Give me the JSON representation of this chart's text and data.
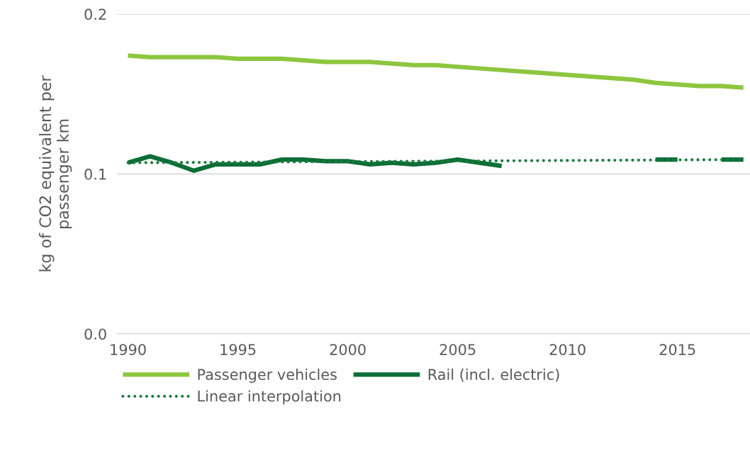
{
  "chart_data": {
    "type": "line",
    "ylabel": "kg of CO2 equivalent per\npassenger km",
    "x": [
      1990,
      1991,
      1992,
      1993,
      1994,
      1995,
      1996,
      1997,
      1998,
      1999,
      2000,
      2001,
      2002,
      2003,
      2004,
      2005,
      2006,
      2007,
      2008,
      2009,
      2010,
      2011,
      2012,
      2013,
      2014,
      2015,
      2016,
      2017,
      2018
    ],
    "series": [
      {
        "name": "Passenger vehicles",
        "color": "#8dc63f",
        "values": [
          0.174,
          0.173,
          0.173,
          0.173,
          0.173,
          0.172,
          0.172,
          0.172,
          0.171,
          0.17,
          0.17,
          0.17,
          0.169,
          0.168,
          0.168,
          0.167,
          0.166,
          0.165,
          0.164,
          0.163,
          0.162,
          0.161,
          0.16,
          0.159,
          0.157,
          0.156,
          0.155,
          0.155,
          0.154
        ]
      },
      {
        "name": "Rail (incl. electric)",
        "color": "#0b6e36",
        "values": [
          0.107,
          0.111,
          0.107,
          0.102,
          0.106,
          0.106,
          0.106,
          0.109,
          0.109,
          0.108,
          0.108,
          0.106,
          0.107,
          0.106,
          0.107,
          0.109,
          0.107,
          0.105,
          null,
          null,
          null,
          null,
          null,
          null,
          0.109,
          0.109,
          null,
          0.109,
          0.109
        ]
      },
      {
        "name": "Linear interpolation",
        "color": "#1b7a40",
        "x": [
          1990,
          2018
        ],
        "values": [
          0.107,
          0.109
        ],
        "line_style": "dotted"
      }
    ],
    "xlim": [
      1989.5,
      2018.3
    ],
    "xticks": [
      1990,
      1995,
      2000,
      2005,
      2010,
      2015
    ],
    "ylim": [
      0,
      0.2
    ],
    "yticks": [
      {
        "value": 0,
        "label": "0.0"
      },
      {
        "value": 0.1,
        "label": "0.1"
      },
      {
        "value": 0.2,
        "label": "0.2"
      }
    ],
    "grid": "y",
    "legend": "bottom",
    "marker": "none",
    "line_style": "solid"
  }
}
